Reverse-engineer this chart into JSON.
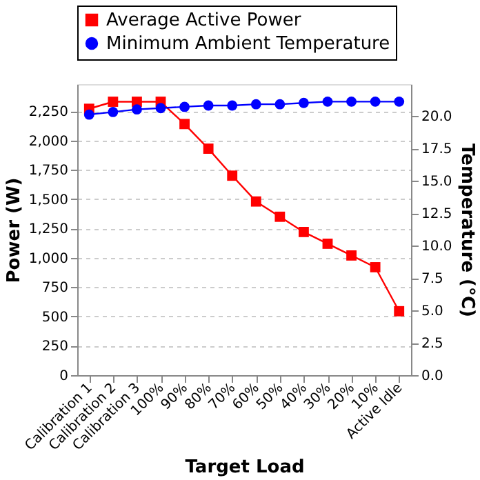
{
  "chart_data": {
    "type": "line",
    "xlabel": "Target Load",
    "ylabel": "Power (W)",
    "y2label": "Temperature  (°C)",
    "categories": [
      "Calibration 1",
      "Calibration 2",
      "Calibration 3",
      "100%",
      "90%",
      "80%",
      "70%",
      "60%",
      "50%",
      "40%",
      "30%",
      "20%",
      "10%",
      "Active Idle"
    ],
    "series": [
      {
        "name": "Average Active Power",
        "color": "#ff0000",
        "marker": "square",
        "values": [
          2270,
          2330,
          2330,
          2330,
          2140,
          1930,
          1700,
          1480,
          1350,
          1220,
          1120,
          1020,
          920,
          545
        ]
      },
      {
        "name": "Minimum Ambient Temperature",
        "color": "#0000ff",
        "marker": "circle",
        "axis": "y2",
        "values": [
          20.1,
          20.3,
          20.5,
          20.6,
          20.7,
          20.8,
          20.8,
          20.9,
          20.9,
          21.0,
          21.1,
          21.1,
          21.1,
          21.1
        ]
      }
    ],
    "ylim": [
      0,
      2480
    ],
    "yticks": [
      {
        "value": 0,
        "label": "0"
      },
      {
        "value": 250,
        "label": "250"
      },
      {
        "value": 500,
        "label": "500"
      },
      {
        "value": 750,
        "label": "750"
      },
      {
        "value": 1000,
        "label": "1,000"
      },
      {
        "value": 1250,
        "label": "1,250"
      },
      {
        "value": 1500,
        "label": "1,500"
      },
      {
        "value": 1750,
        "label": "1,750"
      },
      {
        "value": 2000,
        "label": "2,000"
      },
      {
        "value": 2250,
        "label": "2,250"
      }
    ],
    "y2lim": [
      0,
      22.45
    ],
    "y2ticks": [
      {
        "value": 0,
        "label": "0.0"
      },
      {
        "value": 2.5,
        "label": "2.5"
      },
      {
        "value": 5,
        "label": "5.0"
      },
      {
        "value": 7.5,
        "label": "7.5"
      },
      {
        "value": 10,
        "label": "10.0"
      },
      {
        "value": 12.5,
        "label": "12.5"
      },
      {
        "value": 15,
        "label": "15.0"
      },
      {
        "value": 17.5,
        "label": "17.5"
      },
      {
        "value": 20,
        "label": "20.0"
      }
    ],
    "grid": "y",
    "legend": "top"
  }
}
